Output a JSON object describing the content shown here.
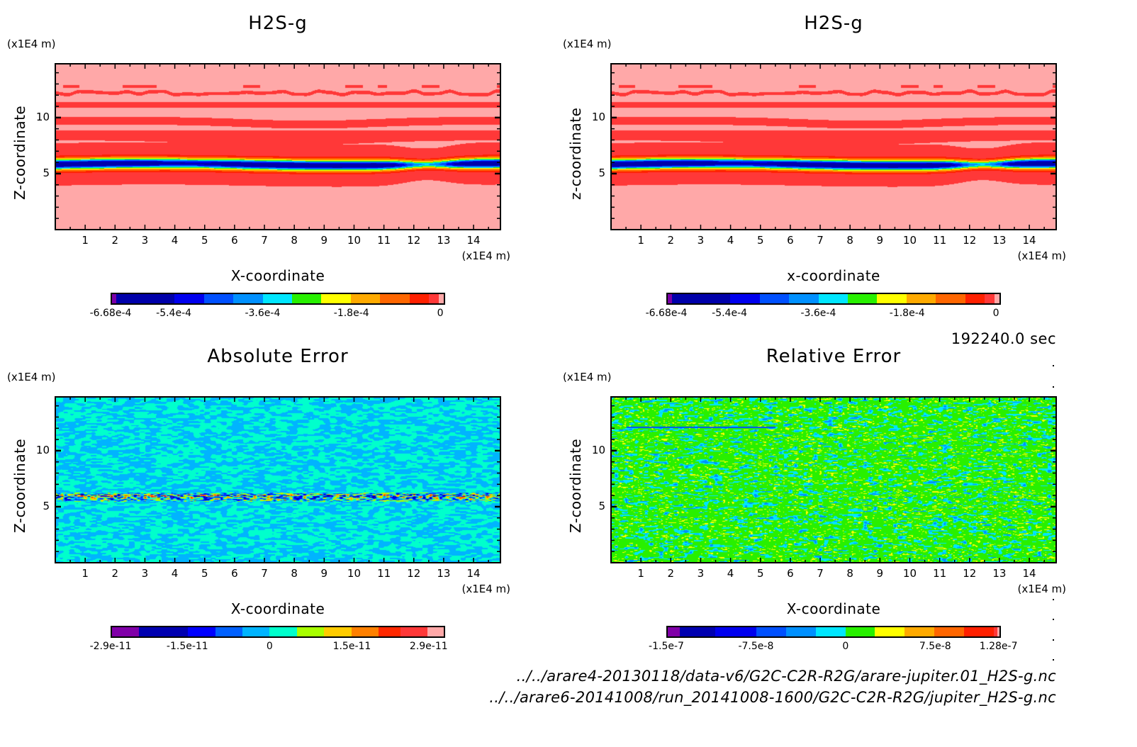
{
  "info": {
    "time": "192240.0 sec",
    "files": [
      "../../arare4-20130118/data-v6/G2C-C2R-R2G/arare-jupiter.01_H2S-g.nc",
      "../../arare6-20141008/run_20141008-1600/G2C-C2R-R2G/jupiter_H2S-g.nc"
    ]
  },
  "chart_data": [
    {
      "id": "panel-tl",
      "type": "heatmap",
      "title": "H2S-g",
      "xlabel": "X-coordinate",
      "ylabel": "Z-coordinate",
      "x_unit": "(x1E4 m)",
      "y_unit": "(x1E4 m)",
      "xlim": [
        0,
        14.9
      ],
      "ylim": [
        0,
        14.8
      ],
      "xticks": [
        "1",
        "2",
        "3",
        "4",
        "5",
        "6",
        "7",
        "8",
        "9",
        "10",
        "11",
        "12",
        "13",
        "14"
      ],
      "yticks": [
        "5",
        "10"
      ],
      "field": "mixing_ratio",
      "colorbar": {
        "colors": [
          "#7a00a8",
          "#0000aa",
          "#0000ee",
          "#0050ff",
          "#0090ff",
          "#00e6ff",
          "#28f000",
          "#ffff00",
          "#ffaa00",
          "#ff6600",
          "#ff2000",
          "#ff3838",
          "#ffa8a8"
        ],
        "bounds": [
          -0.000668,
          -0.00066,
          -0.00054,
          -0.00048,
          -0.00042,
          -0.00036,
          -0.0003,
          -0.00024,
          -0.00018,
          -0.00012,
          -6e-05,
          -2e-05,
          0,
          1e-05
        ],
        "tick_labels": [
          "-6.68e-4",
          "-5.4e-4",
          "-3.6e-4",
          "-1.8e-4",
          "0"
        ]
      }
    },
    {
      "id": "panel-tr",
      "type": "heatmap",
      "title": "H2S-g",
      "xlabel": "x-coordinate",
      "ylabel": "z-coordinate",
      "x_unit": "(x1E4 m)",
      "y_unit": "(x1E4 m)",
      "xlim": [
        0,
        14.9
      ],
      "ylim": [
        0,
        14.8
      ],
      "xticks": [
        "1",
        "2",
        "3",
        "4",
        "5",
        "6",
        "7",
        "8",
        "9",
        "10",
        "11",
        "12",
        "13",
        "14"
      ],
      "yticks": [
        "5",
        "10"
      ],
      "field": "mixing_ratio",
      "colorbar": {
        "colors": [
          "#7a00a8",
          "#0000aa",
          "#0000ee",
          "#0050ff",
          "#0090ff",
          "#00e6ff",
          "#28f000",
          "#ffff00",
          "#ffaa00",
          "#ff6600",
          "#ff2000",
          "#ff3838",
          "#ffa8a8"
        ],
        "bounds": [
          -0.000668,
          -0.00066,
          -0.00054,
          -0.00048,
          -0.00042,
          -0.00036,
          -0.0003,
          -0.00024,
          -0.00018,
          -0.00012,
          -6e-05,
          -2e-05,
          0,
          1e-05
        ],
        "tick_labels": [
          "-6.68e-4",
          "-5.4e-4",
          "-3.6e-4",
          "-1.8e-4",
          "0"
        ]
      }
    },
    {
      "id": "panel-bl",
      "type": "heatmap",
      "title": "Absolute Error",
      "xlabel": "X-coordinate",
      "ylabel": "Z-coordinate",
      "x_unit": "(x1E4 m)",
      "y_unit": "(x1E4 m)",
      "xlim": [
        0,
        14.9
      ],
      "ylim": [
        0,
        14.8
      ],
      "xticks": [
        "1",
        "2",
        "3",
        "4",
        "5",
        "6",
        "7",
        "8",
        "9",
        "10",
        "11",
        "12",
        "13",
        "14"
      ],
      "yticks": [
        "5",
        "10"
      ],
      "field": "absolute_error",
      "colorbar": {
        "colors": [
          "#8000a8",
          "#0000b0",
          "#0000ff",
          "#0060ff",
          "#00b4ff",
          "#00ffcc",
          "#a8ff00",
          "#ffcc00",
          "#ff8000",
          "#ff2800",
          "#ff3838",
          "#ffa8a8"
        ],
        "bounds": [
          -2.9e-11,
          -2.4e-11,
          -1.5e-11,
          -1e-11,
          -5e-12,
          0,
          5e-12,
          1e-11,
          1.5e-11,
          2e-11,
          2.4e-11,
          2.9e-11,
          3.2e-11
        ],
        "tick_labels": [
          "-2.9e-11",
          "-1.5e-11",
          "0",
          "1.5e-11",
          "2.9e-11"
        ]
      }
    },
    {
      "id": "panel-br",
      "type": "heatmap",
      "title": "Relative Error",
      "xlabel": "X-coordinate",
      "ylabel": "Z-coordinate",
      "x_unit": "(x1E4 m)",
      "y_unit": "(x1E4 m)",
      "xlim": [
        0,
        14.9
      ],
      "ylim": [
        0,
        14.8
      ],
      "xticks": [
        "1",
        "2",
        "3",
        "4",
        "5",
        "6",
        "7",
        "8",
        "9",
        "10",
        "11",
        "12",
        "13",
        "14"
      ],
      "yticks": [
        "5",
        "10"
      ],
      "field": "relative_error",
      "colorbar": {
        "colors": [
          "#8000a8",
          "#0000b0",
          "#0000ee",
          "#0050ff",
          "#0090ff",
          "#00e6ff",
          "#28f000",
          "#ffff00",
          "#ffaa00",
          "#ff6600",
          "#ff2000",
          "#ff3838",
          "#ffa8a8"
        ],
        "bounds": [
          -1.5e-07,
          -1.4e-07,
          -1.1e-07,
          -7.5e-08,
          -5e-08,
          -2.5e-08,
          0,
          2.5e-08,
          5e-08,
          7.5e-08,
          1e-07,
          1.25e-07,
          1.28e-07,
          1.3e-07
        ],
        "tick_labels": [
          "-1.5e-7",
          "-7.5e-8",
          "0",
          "7.5e-8",
          "1.28e-7"
        ]
      }
    }
  ]
}
